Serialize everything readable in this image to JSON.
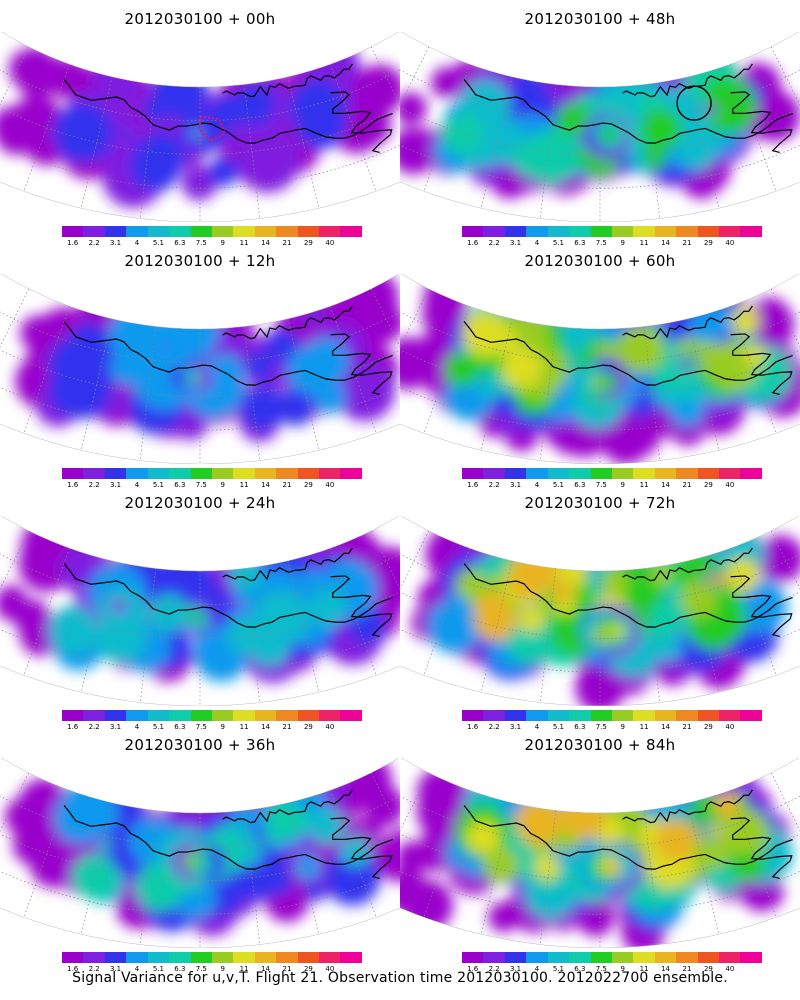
{
  "panels": [
    {
      "title": "2012030100 + 00h",
      "intensity": 0.18,
      "patches": [
        [
          0.5,
          0.35,
          0.09,
          0.28
        ],
        [
          0.35,
          0.4,
          0.05,
          0.18
        ]
      ],
      "markers": [
        "polygon"
      ]
    },
    {
      "title": "2012030100 + 48h",
      "intensity": 0.48,
      "patches": [
        [
          0.5,
          0.35,
          0.2,
          0.45
        ],
        [
          0.72,
          0.3,
          0.06,
          0.4
        ]
      ],
      "markers": [
        "circle"
      ]
    },
    {
      "title": "2012030100 + 12h",
      "intensity": 0.25,
      "patches": [
        [
          0.48,
          0.35,
          0.12,
          0.38
        ]
      ],
      "markers": []
    },
    {
      "title": "2012030100 + 60h",
      "intensity": 0.6,
      "patches": [
        [
          0.5,
          0.38,
          0.18,
          0.55
        ],
        [
          0.7,
          0.3,
          0.08,
          0.55
        ]
      ],
      "markers": []
    },
    {
      "title": "2012030100 + 24h",
      "intensity": 0.32,
      "patches": [
        [
          0.5,
          0.35,
          0.14,
          0.48
        ],
        [
          0.35,
          0.3,
          0.06,
          0.3
        ]
      ],
      "markers": []
    },
    {
      "title": "2012030100 + 72h",
      "intensity": 0.68,
      "patches": [
        [
          0.52,
          0.45,
          0.22,
          0.65
        ],
        [
          0.75,
          0.2,
          0.07,
          0.75
        ]
      ],
      "markers": []
    },
    {
      "title": "2012030100 + 36h",
      "intensity": 0.38,
      "patches": [
        [
          0.5,
          0.35,
          0.16,
          0.55
        ],
        [
          0.32,
          0.32,
          0.06,
          0.4
        ]
      ],
      "markers": []
    },
    {
      "title": "2012030100 + 84h",
      "intensity": 0.72,
      "patches": [
        [
          0.52,
          0.4,
          0.22,
          0.68
        ],
        [
          0.74,
          0.25,
          0.08,
          0.72
        ]
      ],
      "markers": []
    }
  ],
  "colorbar": {
    "colors": [
      "#9900cc",
      "#7f1fe0",
      "#3333ee",
      "#1199ee",
      "#11bbcc",
      "#11ccaa",
      "#22cc22",
      "#99cc22",
      "#dddd22",
      "#e8b422",
      "#ee8822",
      "#ee5522",
      "#ee2266",
      "#ee0099"
    ],
    "labels": [
      "1.6",
      "2.2",
      "3.1",
      "4",
      "5.1",
      "6.3",
      "7.5",
      "9",
      "11",
      "14",
      "21",
      "29",
      "40"
    ]
  },
  "caption": "Signal Variance for u,v,T. Flight 21. Observation time 2012030100. 2012022700 ensemble."
}
